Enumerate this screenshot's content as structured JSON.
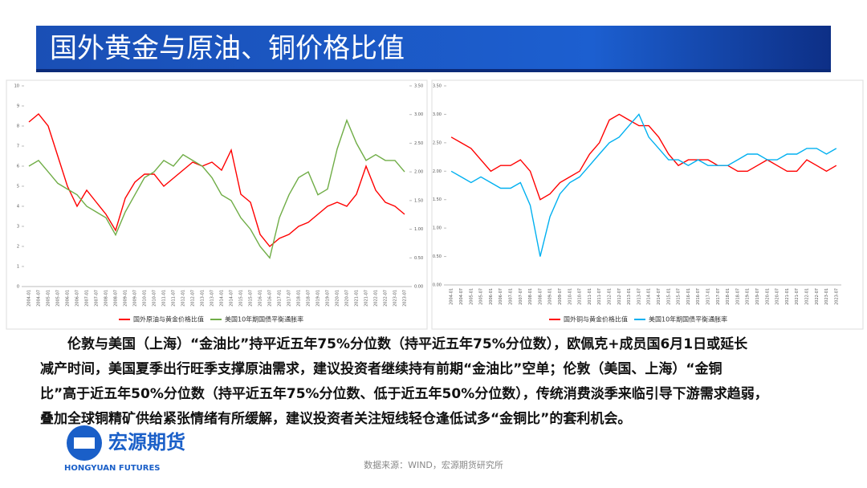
{
  "header": {
    "title": "国外黄金与原油、铜价格比值"
  },
  "chart_data": [
    {
      "type": "line",
      "categories": [
        "2004-01",
        "2004-07",
        "2005-01",
        "2005-07",
        "2006-01",
        "2006-07",
        "2007-01",
        "2007-07",
        "2008-01",
        "2008-07",
        "2009-01",
        "2009-07",
        "2010-01",
        "2010-07",
        "2011-01",
        "2011-07",
        "2012-01",
        "2012-07",
        "2013-01",
        "2013-07",
        "2014-01",
        "2014-07",
        "2015-01",
        "2015-07",
        "2016-01",
        "2016-07",
        "2017-01",
        "2017-07",
        "2018-01",
        "2018-07",
        "2019-01",
        "2019-07",
        "2020-01",
        "2020-07",
        "2021-01",
        "2021-07",
        "2022-01",
        "2022-07",
        "2023-01",
        "2023-07"
      ],
      "series": [
        {
          "name": "国外原油与黄金价格比值",
          "color": "#ff0000",
          "values": [
            8.2,
            8.6,
            8.0,
            6.5,
            5.0,
            4.0,
            4.8,
            4.2,
            3.6,
            2.8,
            4.4,
            5.2,
            5.6,
            5.6,
            5.0,
            5.4,
            5.8,
            6.2,
            6.0,
            6.2,
            5.8,
            6.8,
            4.6,
            4.2,
            2.6,
            2.0,
            2.4,
            2.6,
            3.0,
            3.2,
            3.6,
            4.0,
            4.2,
            4.0,
            4.6,
            6.0,
            4.8,
            4.2,
            4.0,
            3.6
          ]
        },
        {
          "name": "美国10年期国债平衡通胀率",
          "color": "#70ad47",
          "axis": "y2",
          "values": [
            2.1,
            2.2,
            2.0,
            1.8,
            1.7,
            1.6,
            1.4,
            1.3,
            1.2,
            0.9,
            1.3,
            1.6,
            1.9,
            2.0,
            2.2,
            2.1,
            2.3,
            2.2,
            2.1,
            1.9,
            1.6,
            1.5,
            1.2,
            1.0,
            0.7,
            0.5,
            1.2,
            1.6,
            1.9,
            2.0,
            1.6,
            1.7,
            2.4,
            2.9,
            2.5,
            2.2,
            2.3,
            2.2,
            2.2,
            2.0
          ]
        }
      ],
      "ylim": [
        0,
        10
      ],
      "yticks": [
        0,
        1,
        2,
        3,
        4,
        5,
        6,
        7,
        8,
        9,
        10
      ],
      "y2lim": [
        0,
        3.5
      ],
      "y2ticks": [
        {
          "value": 0,
          "label": "0.00"
        },
        {
          "value": 0.5,
          "label": "0.50"
        },
        {
          "value": 1,
          "label": "1.00"
        },
        {
          "value": 1.5,
          "label": "1.50"
        },
        {
          "value": 2,
          "label": "2.00"
        },
        {
          "value": 2.5,
          "label": "2.50"
        },
        {
          "value": 3,
          "label": "3.00"
        },
        {
          "value": 3.5,
          "label": "3.50"
        }
      ],
      "legend": "bottom"
    },
    {
      "type": "line",
      "categories": [
        "2004-01",
        "2004-07",
        "2005-01",
        "2005-07",
        "2006-01",
        "2006-07",
        "2007-01",
        "2007-07",
        "2008-01",
        "2008-07",
        "2009-01",
        "2009-07",
        "2010-01",
        "2010-07",
        "2011-01",
        "2011-07",
        "2012-01",
        "2012-07",
        "2013-01",
        "2013-07",
        "2014-01",
        "2014-07",
        "2015-01",
        "2015-07",
        "2016-01",
        "2016-07",
        "2017-01",
        "2017-07",
        "2018-01",
        "2018-07",
        "2019-01",
        "2019-07",
        "2020-01",
        "2020-07",
        "2021-01",
        "2021-07",
        "2022-01",
        "2022-07",
        "2023-01",
        "2023-07"
      ],
      "series": [
        {
          "name": "国外铜与黄金价格比值",
          "color": "#ff0000",
          "values": [
            2.6,
            2.5,
            2.4,
            2.2,
            2.0,
            2.1,
            2.1,
            2.2,
            2.0,
            1.5,
            1.6,
            1.8,
            1.9,
            2.0,
            2.3,
            2.5,
            2.9,
            3.0,
            2.9,
            2.8,
            2.8,
            2.6,
            2.3,
            2.1,
            2.2,
            2.2,
            2.2,
            2.1,
            2.1,
            2.0,
            2.0,
            2.1,
            2.2,
            2.1,
            2.0,
            2.0,
            2.2,
            2.1,
            2.0,
            2.1
          ]
        },
        {
          "name": "美国10年期国债平衡通胀率",
          "color": "#00b0f0",
          "values": [
            2.0,
            1.9,
            1.8,
            1.9,
            1.8,
            1.7,
            1.7,
            1.8,
            1.4,
            0.5,
            1.2,
            1.6,
            1.8,
            1.9,
            2.1,
            2.3,
            2.5,
            2.6,
            2.8,
            3.0,
            2.6,
            2.4,
            2.2,
            2.2,
            2.1,
            2.2,
            2.1,
            2.1,
            2.1,
            2.2,
            2.3,
            2.3,
            2.2,
            2.2,
            2.3,
            2.3,
            2.4,
            2.4,
            2.3,
            2.4
          ]
        }
      ],
      "ylim": [
        0,
        3.5
      ],
      "yticks": [
        {
          "value": 0,
          "label": "0.00"
        },
        {
          "value": 0.5,
          "label": "0.50"
        },
        {
          "value": 1,
          "label": "1.00"
        },
        {
          "value": 1.5,
          "label": "1.50"
        },
        {
          "value": 2,
          "label": "2.00"
        },
        {
          "value": 2.5,
          "label": "2.50"
        },
        {
          "value": 3,
          "label": "3.00"
        },
        {
          "value": 3.5,
          "label": "3.50"
        }
      ],
      "legend": "bottom"
    }
  ],
  "body": {
    "lines": [
      "伦敦与美国（上海）“金油比”持平近五年75%分位数（持平近五年75%分位数），欧佩克+成员国6月1日或延长",
      "减产时间，美国夏季出行旺季支撑原油需求，建议投资者继续持有前期“金油比”空单；伦敦（美国、上海）“金铜",
      "比”高于近五年50%分位数（持平近五年75%分位数、低于近五年50%分位数），传统消费淡季来临引导下游需求趋弱，",
      "叠加全球铜精矿供给紧张情绪有所缓解，建议投资者关注短线轻仓逢低试多“金铜比”的套利机会。"
    ]
  },
  "logo": {
    "name": "宏源期货",
    "english": "HONGYUAN FUTURES"
  },
  "source": "数据来源：WIND，宏源期货研究所"
}
